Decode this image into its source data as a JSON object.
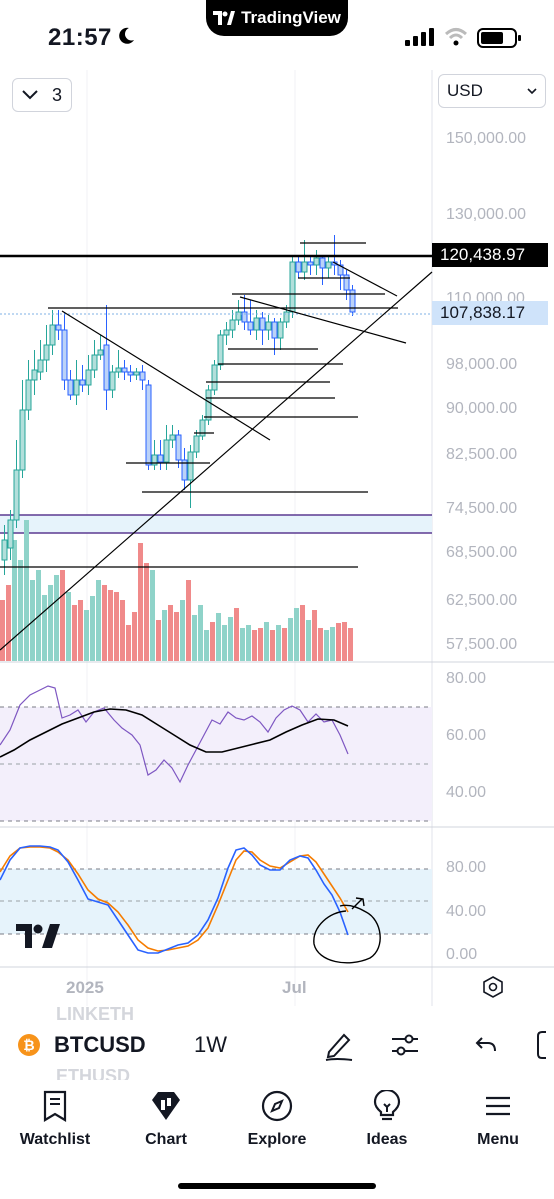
{
  "status_bar": {
    "time": "21:57",
    "app_pill": "TradingView"
  },
  "chart": {
    "collapse_count": "3",
    "currency": "USD",
    "price_ticks": [
      "150,000.00",
      "130,000.00",
      "110,000.00",
      "98,000.00",
      "90,000.00",
      "82,500.00",
      "74,500.00",
      "68,500.00",
      "62,500.00",
      "57,500.00"
    ],
    "last_price": "120,438.97",
    "current_price": "107,838.17",
    "rsi_ticks": [
      "80.00",
      "60.00",
      "40.00"
    ],
    "stoch_ticks": [
      "80.00",
      "40.00",
      "0.00"
    ],
    "time_labels": [
      "2025",
      "Jul"
    ],
    "colors": {
      "up": "#26a69a",
      "down": "#ef5350",
      "vol_up": "#8fd3c9",
      "vol_down": "#f08a8a",
      "rsi_line": "#7e57c2",
      "stoch_k": "#2962ff",
      "stoch_d": "#f57c00",
      "range_fill": "#e8f4fc"
    }
  },
  "ghost_watchlist": [
    "LINKETH",
    "ETHUSD"
  ],
  "symbol_bar": {
    "symbol": "BTCUSD",
    "interval": "1W",
    "coin_glyph": "₿"
  },
  "nav": [
    {
      "label": "Watchlist",
      "icon": "watchlist-icon"
    },
    {
      "label": "Chart",
      "icon": "chart-icon"
    },
    {
      "label": "Explore",
      "icon": "compass-icon"
    },
    {
      "label": "Ideas",
      "icon": "lightbulb-icon"
    },
    {
      "label": "Menu",
      "icon": "hamburger-icon"
    }
  ]
}
